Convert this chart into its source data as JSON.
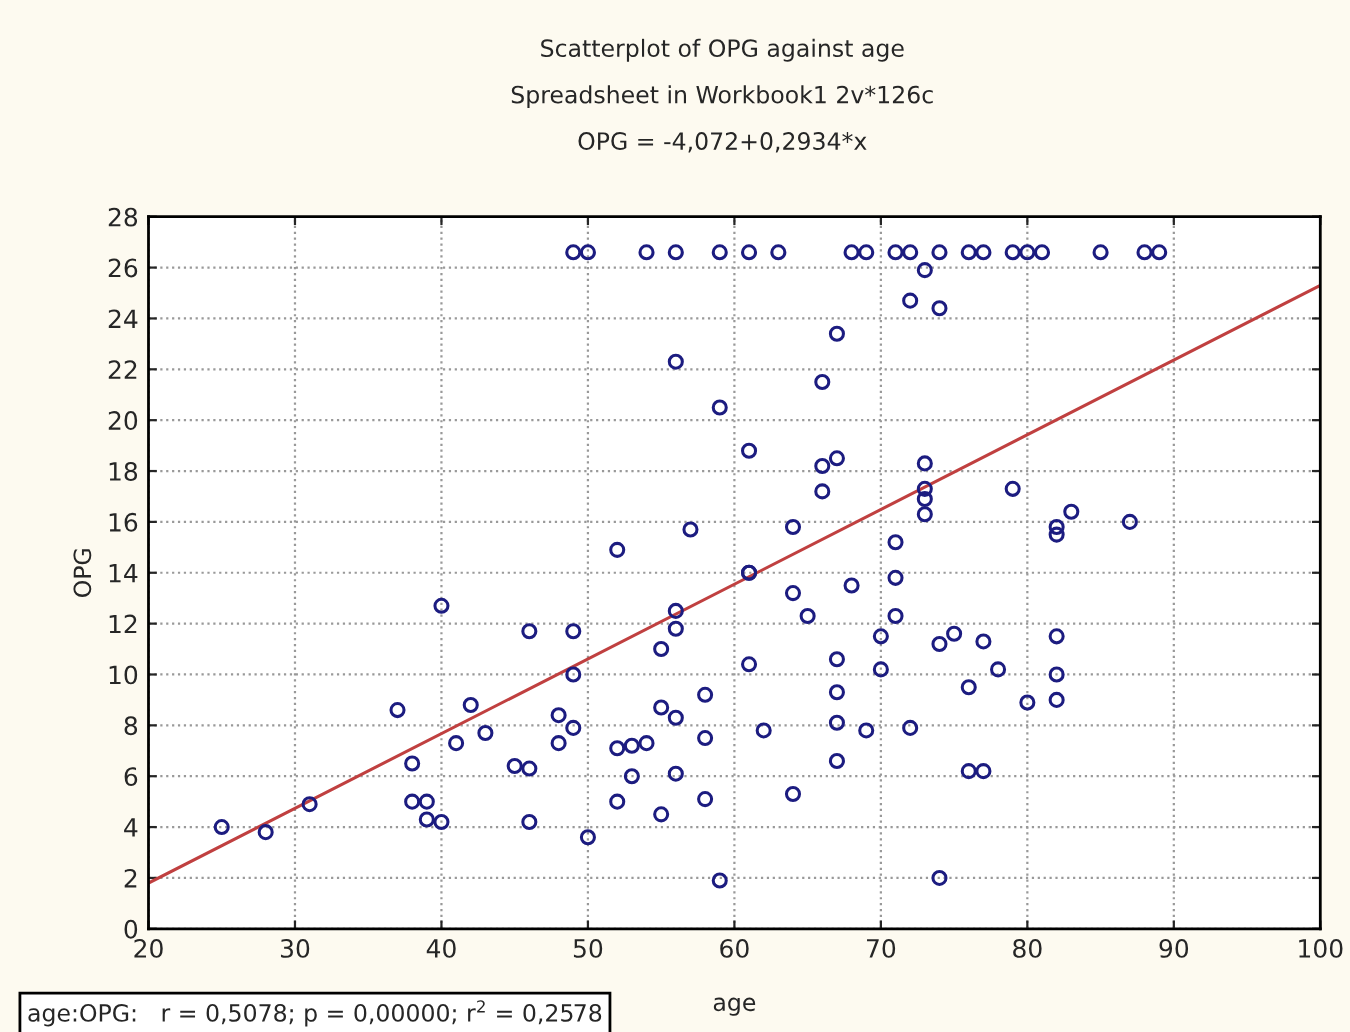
{
  "chart_data": {
    "type": "scatter",
    "title": "Scatterplot of OPG against age",
    "subtitle": "Spreadsheet in Workbook1 2v*126c",
    "xlabel": "age",
    "ylabel": "OPG",
    "annotations": [
      "OPG = -4,072+0,2934*x",
      "age:OPG:   r = 0,5078; p = 0,00000; r$^{2}$ = 0,2578"
    ],
    "series": [
      {
        "color": "#1c1c80",
        "marker": "circle",
        "x": [
          49,
          50,
          54,
          56,
          59,
          61,
          63,
          68,
          69,
          71,
          72,
          74,
          76,
          77,
          79,
          80,
          81,
          85,
          88,
          89,
          56,
          59,
          57,
          52,
          73,
          72,
          74,
          67,
          66,
          61,
          66,
          67,
          73,
          73,
          73,
          73,
          66,
          79,
          64,
          71,
          83,
          82,
          82,
          87,
          61,
          25,
          28,
          31,
          37,
          38,
          38,
          39,
          39,
          40,
          40,
          41,
          42,
          43,
          45,
          46,
          46,
          46,
          48,
          48,
          49,
          49,
          49,
          50,
          52,
          52,
          53,
          53,
          54,
          55,
          55,
          55,
          56,
          56,
          56,
          56,
          58,
          58,
          58,
          59,
          61,
          64,
          65,
          68,
          71,
          71,
          70,
          70,
          74,
          75,
          77,
          78,
          76,
          80,
          82,
          82,
          82,
          61,
          67,
          67,
          67,
          67,
          62,
          69,
          72,
          76,
          77,
          64,
          74
        ],
        "values": [
          26.6,
          26.6,
          26.6,
          26.6,
          26.6,
          26.6,
          26.6,
          26.6,
          26.6,
          26.6,
          26.6,
          26.6,
          26.6,
          26.6,
          26.6,
          26.6,
          26.6,
          26.6,
          26.6,
          26.6,
          22.3,
          20.5,
          15.7,
          14.9,
          25.9,
          24.7,
          24.4,
          23.4,
          21.5,
          18.8,
          18.2,
          18.5,
          18.3,
          17.3,
          16.9,
          16.3,
          17.2,
          17.3,
          15.8,
          15.2,
          16.4,
          15.8,
          15.5,
          16.0,
          14.0,
          4.0,
          3.8,
          4.9,
          8.6,
          6.5,
          5.0,
          5.0,
          4.3,
          4.2,
          12.7,
          7.3,
          8.8,
          7.7,
          6.4,
          6.3,
          4.2,
          11.7,
          8.4,
          7.3,
          11.7,
          10.0,
          7.9,
          3.6,
          7.1,
          5.0,
          7.2,
          6.0,
          7.3,
          11.0,
          8.7,
          4.5,
          12.5,
          11.8,
          8.3,
          6.1,
          9.2,
          7.5,
          5.1,
          1.9,
          14.0,
          13.2,
          12.3,
          13.5,
          13.8,
          12.3,
          11.5,
          10.2,
          11.2,
          11.6,
          11.3,
          10.2,
          9.5,
          8.9,
          11.5,
          10.0,
          9.0,
          10.4,
          10.6,
          9.3,
          8.1,
          6.6,
          7.8,
          7.8,
          7.9,
          6.2,
          6.2,
          5.3,
          2.0
        ]
      },
      {
        "type": "line",
        "color": "#c04040",
        "x": [
          20,
          100
        ],
        "values": [
          1.8,
          25.3
        ],
        "line_style": "solid"
      }
    ],
    "xlim": [
      20,
      100
    ],
    "xticks": [
      20,
      30,
      40,
      50,
      60,
      70,
      80,
      90,
      100
    ],
    "ylim": [
      0,
      28
    ],
    "yticks": [
      0,
      2,
      4,
      6,
      8,
      10,
      12,
      14,
      16,
      18,
      20,
      22,
      24,
      26,
      28
    ],
    "grid": true,
    "legend": false
  }
}
